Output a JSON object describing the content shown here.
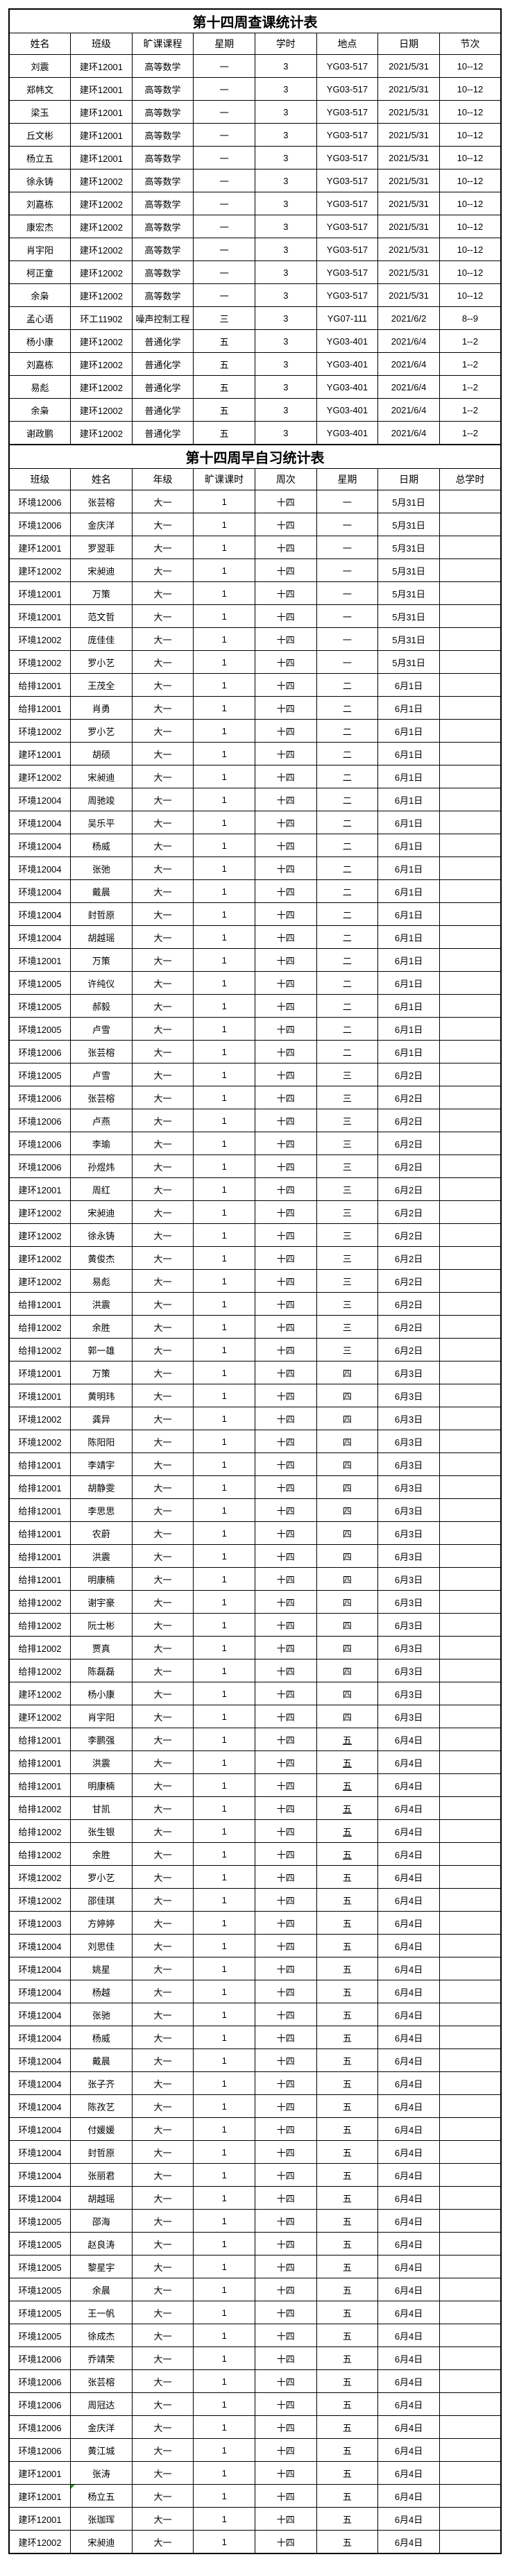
{
  "page": {
    "background": "#ffffff",
    "border_color": "#000000",
    "comment_marker_color": "#1fa11f"
  },
  "table1": {
    "title": "第十四周查课统计表",
    "headers": [
      "姓名",
      "班级",
      "旷课课程",
      "星期",
      "学时",
      "地点",
      "日期",
      "节次"
    ],
    "rows": [
      [
        "刘震",
        "建环12001",
        "高等数学",
        "一",
        "3",
        "YG03-517",
        "2021/5/31",
        "10--12"
      ],
      [
        "郑帏文",
        "建环12001",
        "高等数学",
        "一",
        "3",
        "YG03-517",
        "2021/5/31",
        "10--12"
      ],
      [
        "梁玉",
        "建环12001",
        "高等数学",
        "一",
        "3",
        "YG03-517",
        "2021/5/31",
        "10--12"
      ],
      [
        "丘文彬",
        "建环12001",
        "高等数学",
        "一",
        "3",
        "YG03-517",
        "2021/5/31",
        "10--12"
      ],
      [
        "杨立五",
        "建环12001",
        "高等数学",
        "一",
        "3",
        "YG03-517",
        "2021/5/31",
        "10--12"
      ],
      [
        "徐永铸",
        "建环12002",
        "高等数学",
        "一",
        "3",
        "YG03-517",
        "2021/5/31",
        "10--12"
      ],
      [
        "刘嘉栋",
        "建环12002",
        "高等数学",
        "一",
        "3",
        "YG03-517",
        "2021/5/31",
        "10--12"
      ],
      [
        "康宏杰",
        "建环12002",
        "高等数学",
        "一",
        "3",
        "YG03-517",
        "2021/5/31",
        "10--12"
      ],
      [
        "肖宇阳",
        "建环12002",
        "高等数学",
        "一",
        "3",
        "YG03-517",
        "2021/5/31",
        "10--12"
      ],
      [
        "柯正童",
        "建环12002",
        "高等数学",
        "一",
        "3",
        "YG03-517",
        "2021/5/31",
        "10--12"
      ],
      [
        "余枭",
        "建环12002",
        "高等数学",
        "一",
        "3",
        "YG03-517",
        "2021/5/31",
        "10--12"
      ],
      [
        "孟心语",
        "环工11902",
        "噪声控制工程",
        "三",
        "3",
        "YG07-111",
        "2021/6/2",
        "8--9"
      ],
      [
        "杨小康",
        "建环12002",
        "普通化学",
        "五",
        "3",
        "YG03-401",
        "2021/6/4",
        "1--2"
      ],
      [
        "刘嘉栋",
        "建环12002",
        "普通化学",
        "五",
        "3",
        "YG03-401",
        "2021/6/4",
        "1--2"
      ],
      [
        "易彪",
        "建环12002",
        "普通化学",
        "五",
        "3",
        "YG03-401",
        "2021/6/4",
        "1--2"
      ],
      [
        "余枭",
        "建环12002",
        "普通化学",
        "五",
        "3",
        "YG03-401",
        "2021/6/4",
        "1--2"
      ],
      [
        "谢政鹏",
        "建环12002",
        "普通化学",
        "五",
        "3",
        "YG03-401",
        "2021/6/4",
        "1--2"
      ]
    ]
  },
  "table2": {
    "title": "第十四周早自习统计表",
    "headers": [
      "班级",
      "姓名",
      "年级",
      "旷课课时",
      "周次",
      "星期",
      "日期",
      "总学时"
    ],
    "weekday_col": 5,
    "underlined_weekday_rows": [
      54,
      55,
      56,
      57,
      58,
      59
    ],
    "comment_marker_row": 87,
    "comment_marker_col": 1,
    "rows": [
      [
        "环境12006",
        "张芸榕",
        "大一",
        "1",
        "十四",
        "一",
        "5月31日",
        ""
      ],
      [
        "环境12006",
        "金庆洋",
        "大一",
        "1",
        "十四",
        "一",
        "5月31日",
        ""
      ],
      [
        "建环12001",
        "罗翌菲",
        "大一",
        "1",
        "十四",
        "一",
        "5月31日",
        ""
      ],
      [
        "建环12002",
        "宋昶迪",
        "大一",
        "1",
        "十四",
        "一",
        "5月31日",
        ""
      ],
      [
        "环境12001",
        "万策",
        "大一",
        "1",
        "十四",
        "一",
        "5月31日",
        ""
      ],
      [
        "环境12001",
        "范文哲",
        "大一",
        "1",
        "十四",
        "一",
        "5月31日",
        ""
      ],
      [
        "环境12002",
        "庞佳佳",
        "大一",
        "1",
        "十四",
        "一",
        "5月31日",
        ""
      ],
      [
        "环境12002",
        "罗小艺",
        "大一",
        "1",
        "十四",
        "一",
        "5月31日",
        ""
      ],
      [
        "给排12001",
        "王茂全",
        "大一",
        "1",
        "十四",
        "二",
        "6月1日",
        ""
      ],
      [
        "给排12001",
        "肖勇",
        "大一",
        "1",
        "十四",
        "二",
        "6月1日",
        ""
      ],
      [
        "环境12002",
        "罗小艺",
        "大一",
        "1",
        "十四",
        "二",
        "6月1日",
        ""
      ],
      [
        "建环12001",
        "胡硕",
        "大一",
        "1",
        "十四",
        "二",
        "6月1日",
        ""
      ],
      [
        "建环12002",
        "宋昶迪",
        "大一",
        "1",
        "十四",
        "二",
        "6月1日",
        ""
      ],
      [
        "环境12004",
        "周驰竣",
        "大一",
        "1",
        "十四",
        "二",
        "6月1日",
        ""
      ],
      [
        "环境12004",
        "吴乐平",
        "大一",
        "1",
        "十四",
        "二",
        "6月1日",
        ""
      ],
      [
        "环境12004",
        "杨威",
        "大一",
        "1",
        "十四",
        "二",
        "6月1日",
        ""
      ],
      [
        "环境12004",
        "张弛",
        "大一",
        "1",
        "十四",
        "二",
        "6月1日",
        ""
      ],
      [
        "环境12004",
        "戴晨",
        "大一",
        "1",
        "十四",
        "二",
        "6月1日",
        ""
      ],
      [
        "环境12004",
        "封哲原",
        "大一",
        "1",
        "十四",
        "二",
        "6月1日",
        ""
      ],
      [
        "环境12004",
        "胡越瑶",
        "大一",
        "1",
        "十四",
        "二",
        "6月1日",
        ""
      ],
      [
        "环境12001",
        "万策",
        "大一",
        "1",
        "十四",
        "二",
        "6月1日",
        ""
      ],
      [
        "环境12005",
        "许纯仪",
        "大一",
        "1",
        "十四",
        "二",
        "6月1日",
        ""
      ],
      [
        "环境12005",
        "郝毅",
        "大一",
        "1",
        "十四",
        "二",
        "6月1日",
        ""
      ],
      [
        "环境12005",
        "卢雪",
        "大一",
        "1",
        "十四",
        "二",
        "6月1日",
        ""
      ],
      [
        "环境12006",
        "张芸榕",
        "大一",
        "1",
        "十四",
        "二",
        "6月1日",
        ""
      ],
      [
        "环境12005",
        "卢雪",
        "大一",
        "1",
        "十四",
        "三",
        "6月2日",
        ""
      ],
      [
        "环境12006",
        "张芸榕",
        "大一",
        "1",
        "十四",
        "三",
        "6月2日",
        ""
      ],
      [
        "环境12006",
        "卢燕",
        "大一",
        "1",
        "十四",
        "三",
        "6月2日",
        ""
      ],
      [
        "环境12006",
        "李瑜",
        "大一",
        "1",
        "十四",
        "三",
        "6月2日",
        ""
      ],
      [
        "环境12006",
        "孙煜炜",
        "大一",
        "1",
        "十四",
        "三",
        "6月2日",
        ""
      ],
      [
        "建环12001",
        "周红",
        "大一",
        "1",
        "十四",
        "三",
        "6月2日",
        ""
      ],
      [
        "建环12002",
        "宋昶迪",
        "大一",
        "1",
        "十四",
        "三",
        "6月2日",
        ""
      ],
      [
        "建环12002",
        "徐永铸",
        "大一",
        "1",
        "十四",
        "三",
        "6月2日",
        ""
      ],
      [
        "建环12002",
        "黄俊杰",
        "大一",
        "1",
        "十四",
        "三",
        "6月2日",
        ""
      ],
      [
        "建环12002",
        "易彪",
        "大一",
        "1",
        "十四",
        "三",
        "6月2日",
        ""
      ],
      [
        "给排12001",
        "洪震",
        "大一",
        "1",
        "十四",
        "三",
        "6月2日",
        ""
      ],
      [
        "给排12002",
        "余胜",
        "大一",
        "1",
        "十四",
        "三",
        "6月2日",
        ""
      ],
      [
        "给排12002",
        "郭一雄",
        "大一",
        "1",
        "十四",
        "三",
        "6月2日",
        ""
      ],
      [
        "环境12001",
        "万策",
        "大一",
        "1",
        "十四",
        "四",
        "6月3日",
        ""
      ],
      [
        "环境12001",
        "黄明玮",
        "大一",
        "1",
        "十四",
        "四",
        "6月3日",
        ""
      ],
      [
        "环境12002",
        "龚异",
        "大一",
        "1",
        "十四",
        "四",
        "6月3日",
        ""
      ],
      [
        "环境12002",
        "陈阳阳",
        "大一",
        "1",
        "十四",
        "四",
        "6月3日",
        ""
      ],
      [
        "给排12001",
        "李靖宇",
        "大一",
        "1",
        "十四",
        "四",
        "6月3日",
        ""
      ],
      [
        "给排12001",
        "胡静雯",
        "大一",
        "1",
        "十四",
        "四",
        "6月3日",
        ""
      ],
      [
        "给排12001",
        "李思思",
        "大一",
        "1",
        "十四",
        "四",
        "6月3日",
        ""
      ],
      [
        "给排12001",
        "农蔚",
        "大一",
        "1",
        "十四",
        "四",
        "6月3日",
        ""
      ],
      [
        "给排12001",
        "洪震",
        "大一",
        "1",
        "十四",
        "四",
        "6月3日",
        ""
      ],
      [
        "给排12001",
        "明康楠",
        "大一",
        "1",
        "十四",
        "四",
        "6月3日",
        ""
      ],
      [
        "给排12002",
        "谢宇豪",
        "大一",
        "1",
        "十四",
        "四",
        "6月3日",
        ""
      ],
      [
        "给排12002",
        "阮士彬",
        "大一",
        "1",
        "十四",
        "四",
        "6月3日",
        ""
      ],
      [
        "给排12002",
        "贾真",
        "大一",
        "1",
        "十四",
        "四",
        "6月3日",
        ""
      ],
      [
        "给排12002",
        "陈磊磊",
        "大一",
        "1",
        "十四",
        "四",
        "6月3日",
        ""
      ],
      [
        "建环12002",
        "杨小康",
        "大一",
        "1",
        "十四",
        "四",
        "6月3日",
        ""
      ],
      [
        "建环12002",
        "肖宇阳",
        "大一",
        "1",
        "十四",
        "四",
        "6月3日",
        ""
      ],
      [
        "给排12001",
        "李鹏强",
        "大一",
        "1",
        "十四",
        "五",
        "6月4日",
        ""
      ],
      [
        "给排12001",
        "洪震",
        "大一",
        "1",
        "十四",
        "五",
        "6月4日",
        ""
      ],
      [
        "给排12001",
        "明康楠",
        "大一",
        "1",
        "十四",
        "五",
        "6月4日",
        ""
      ],
      [
        "给排12002",
        "甘凯",
        "大一",
        "1",
        "十四",
        "五",
        "6月4日",
        ""
      ],
      [
        "给排12002",
        "张生银",
        "大一",
        "1",
        "十四",
        "五",
        "6月4日",
        ""
      ],
      [
        "给排12002",
        "余胜",
        "大一",
        "1",
        "十四",
        "五",
        "6月4日",
        ""
      ],
      [
        "环境12002",
        "罗小艺",
        "大一",
        "1",
        "十四",
        "五",
        "6月4日",
        ""
      ],
      [
        "环境12002",
        "邵佳琪",
        "大一",
        "1",
        "十四",
        "五",
        "6月4日",
        ""
      ],
      [
        "环境12003",
        "方婷婷",
        "大一",
        "1",
        "十四",
        "五",
        "6月4日",
        ""
      ],
      [
        "环境12004",
        "刘思佳",
        "大一",
        "1",
        "十四",
        "五",
        "6月4日",
        ""
      ],
      [
        "环境12004",
        "姚星",
        "大一",
        "1",
        "十四",
        "五",
        "6月4日",
        ""
      ],
      [
        "环境12004",
        "杨越",
        "大一",
        "1",
        "十四",
        "五",
        "6月4日",
        ""
      ],
      [
        "环境12004",
        "张驰",
        "大一",
        "1",
        "十四",
        "五",
        "6月4日",
        ""
      ],
      [
        "环境12004",
        "杨威",
        "大一",
        "1",
        "十四",
        "五",
        "6月4日",
        ""
      ],
      [
        "环境12004",
        "戴晨",
        "大一",
        "1",
        "十四",
        "五",
        "6月4日",
        ""
      ],
      [
        "环境12004",
        "张子齐",
        "大一",
        "1",
        "十四",
        "五",
        "6月4日",
        ""
      ],
      [
        "环境12004",
        "陈孜艺",
        "大一",
        "1",
        "十四",
        "五",
        "6月4日",
        ""
      ],
      [
        "环境12004",
        "付媛媛",
        "大一",
        "1",
        "十四",
        "五",
        "6月4日",
        ""
      ],
      [
        "环境12004",
        "封哲原",
        "大一",
        "1",
        "十四",
        "五",
        "6月4日",
        ""
      ],
      [
        "环境12004",
        "张丽君",
        "大一",
        "1",
        "十四",
        "五",
        "6月4日",
        ""
      ],
      [
        "环境12004",
        "胡越瑶",
        "大一",
        "1",
        "十四",
        "五",
        "6月4日",
        ""
      ],
      [
        "环境12005",
        "邵海",
        "大一",
        "1",
        "十四",
        "五",
        "6月4日",
        ""
      ],
      [
        "环境12005",
        "赵良涛",
        "大一",
        "1",
        "十四",
        "五",
        "6月4日",
        ""
      ],
      [
        "环境12005",
        "黎星宇",
        "大一",
        "1",
        "十四",
        "五",
        "6月4日",
        ""
      ],
      [
        "环境12005",
        "余晨",
        "大一",
        "1",
        "十四",
        "五",
        "6月4日",
        ""
      ],
      [
        "环境12005",
        "王一帆",
        "大一",
        "1",
        "十四",
        "五",
        "6月4日",
        ""
      ],
      [
        "环境12005",
        "徐成杰",
        "大一",
        "1",
        "十四",
        "五",
        "6月4日",
        ""
      ],
      [
        "环境12006",
        "乔靖荣",
        "大一",
        "1",
        "十四",
        "五",
        "6月4日",
        ""
      ],
      [
        "环境12006",
        "张芸榕",
        "大一",
        "1",
        "十四",
        "五",
        "6月4日",
        ""
      ],
      [
        "环境12006",
        "周冠达",
        "大一",
        "1",
        "十四",
        "五",
        "6月4日",
        ""
      ],
      [
        "环境12006",
        "金庆洋",
        "大一",
        "1",
        "十四",
        "五",
        "6月4日",
        ""
      ],
      [
        "环境12006",
        "黄江城",
        "大一",
        "1",
        "十四",
        "五",
        "6月4日",
        ""
      ],
      [
        "建环12001",
        "张涛",
        "大一",
        "1",
        "十四",
        "五",
        "6月4日",
        ""
      ],
      [
        "建环12001",
        "杨立五",
        "大一",
        "1",
        "十四",
        "五",
        "6月4日",
        ""
      ],
      [
        "建环12001",
        "张珈珲",
        "大一",
        "1",
        "十四",
        "五",
        "6月4日",
        ""
      ],
      [
        "建环12002",
        "宋昶迪",
        "大一",
        "1",
        "十四",
        "五",
        "6月4日",
        ""
      ]
    ]
  }
}
